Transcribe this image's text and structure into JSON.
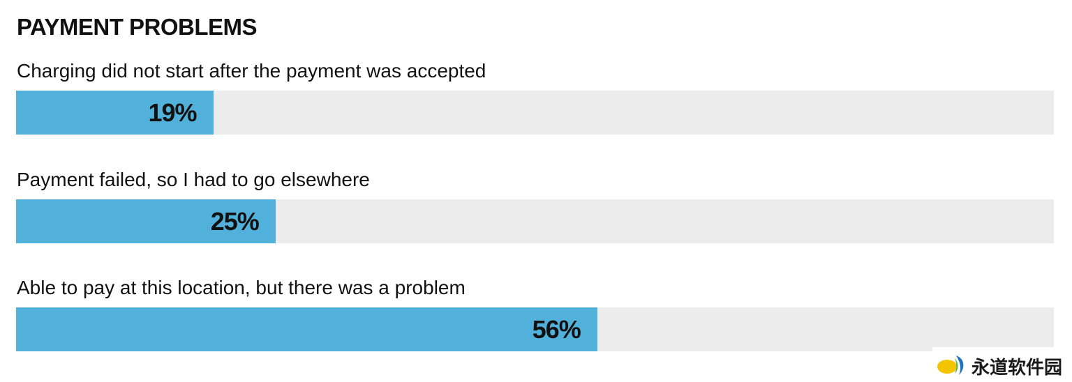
{
  "chart_data": {
    "type": "bar",
    "orientation": "horizontal",
    "title": "PAYMENT PROBLEMS",
    "categories": [
      "Charging did not start after the payment was accepted",
      "Payment failed, so I had to go elsewhere",
      "Able to pay at this location, but there was a problem"
    ],
    "values": [
      19,
      25,
      56
    ],
    "value_labels": [
      "19%",
      "25%",
      "56%"
    ],
    "xlim": [
      0,
      100
    ],
    "unit": "%",
    "grid": false,
    "legend": "none"
  },
  "colors": {
    "bar": "#52b1da",
    "track": "#ececec",
    "text": "#111111"
  },
  "watermark": {
    "text": "永道软件园",
    "icon": "yellow-blue-leaf-logo"
  }
}
